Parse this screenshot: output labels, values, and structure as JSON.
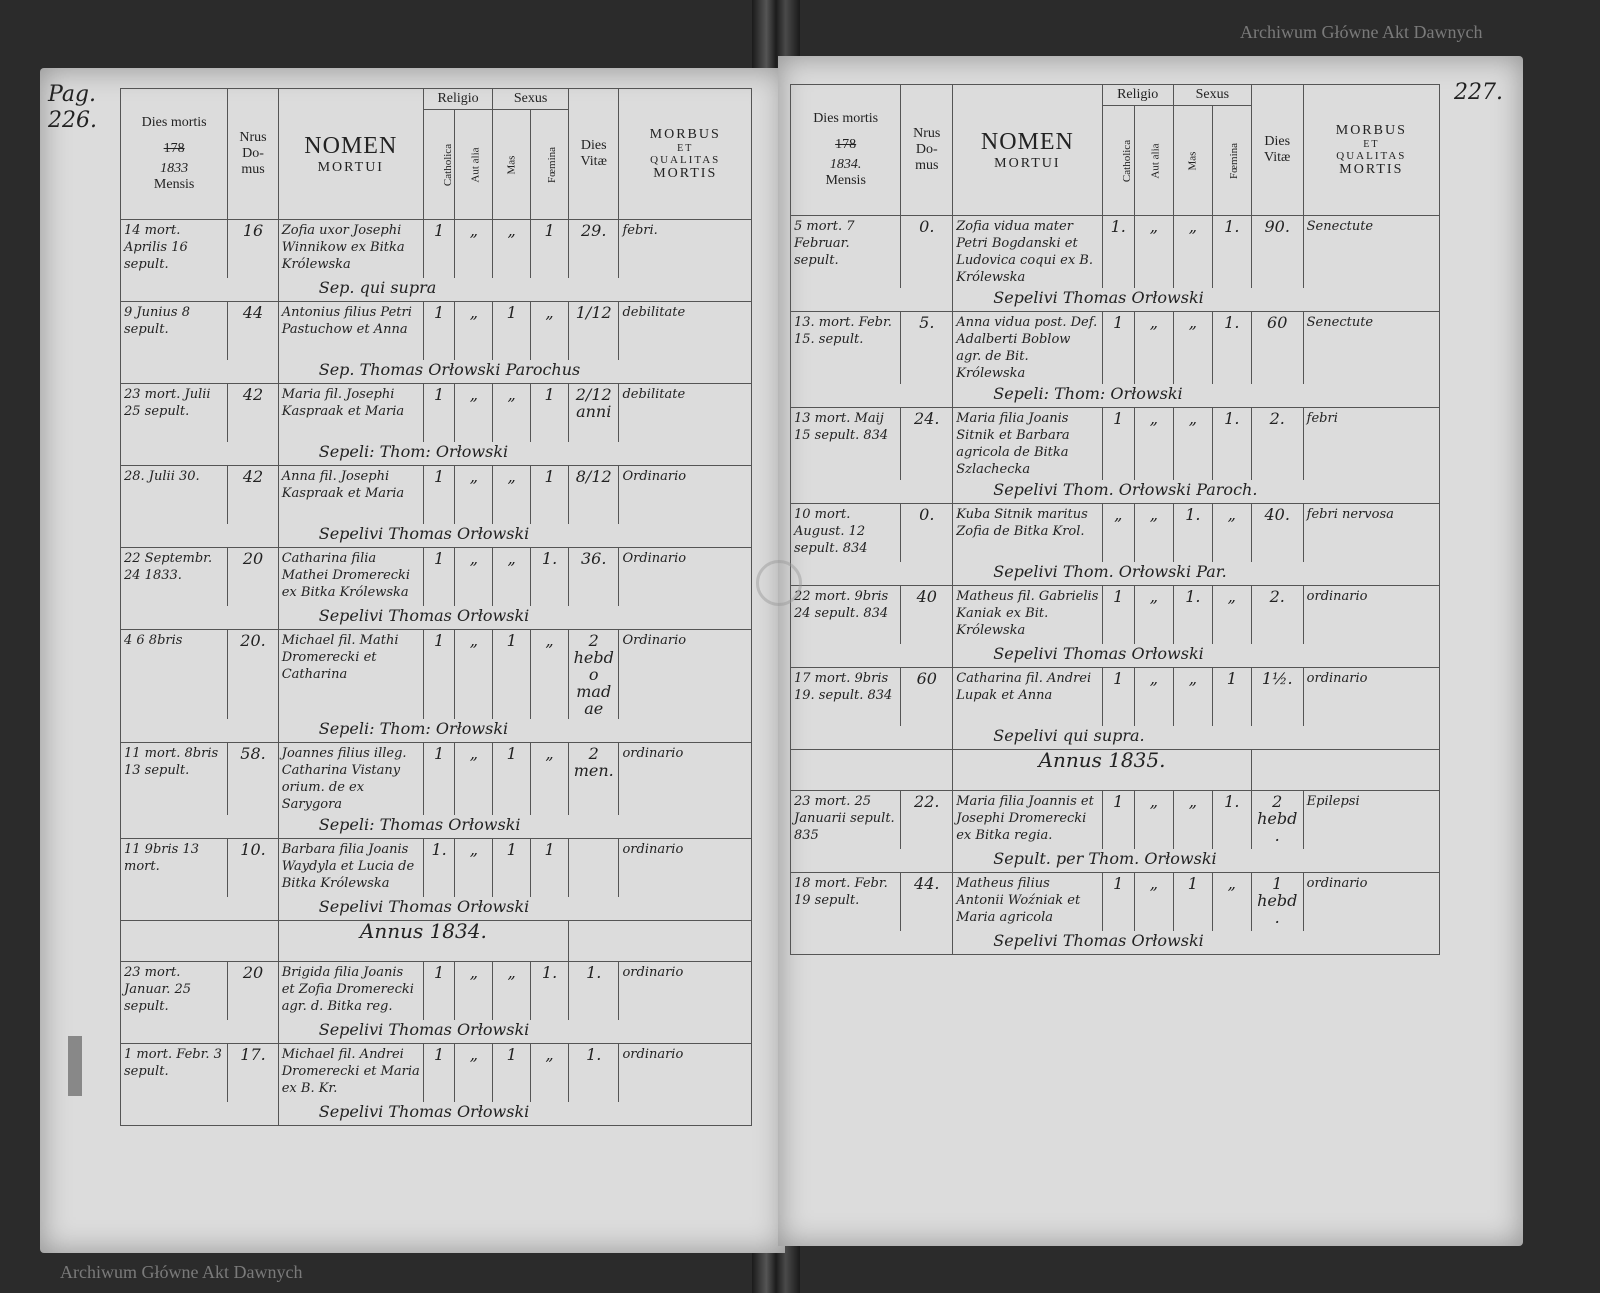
{
  "watermark": "Archiwum Główne Akt Dawnych",
  "stamp": "ARCHIWUM GŁÓWNE AKT DAWNYCH",
  "headers": {
    "dies_mortis": "Dies mortis",
    "year_prefix": "178",
    "mensis": "Mensis",
    "nrus": "Nrus",
    "domus": "Do- mus",
    "nomen": "NOMEN",
    "mortui": "MORTUI",
    "religio": "Religio",
    "sexus": "Sexus",
    "catholica": "Catholica",
    "aut_alia": "Aut alia",
    "mas": "Mas",
    "foemina": "Fœmina",
    "dies_vitae": "Dies Vitæ",
    "morbus": "MORBUS",
    "et": "ET",
    "qualitas": "QUALITAS",
    "mortis": "MORTIS"
  },
  "left": {
    "page_no": "Pag. 226.",
    "year": "1833",
    "rows": [
      {
        "date": "14 mort. Aprilis 16 sepult.",
        "nr": "16",
        "name": "Zofia uxor Josephi Winnikow ex Bitka Królewska",
        "cath": "1",
        "aut": "„",
        "mas": "„",
        "fem": "1",
        "vitae": "29.",
        "morbus": "febri.",
        "burial": "Sep. qui supra"
      },
      {
        "date": "9 Junius 8 sepult.",
        "nr": "44",
        "name": "Antonius filius Petri Pastuchow et Anna",
        "cath": "1",
        "aut": "„",
        "mas": "1",
        "fem": "„",
        "vitae": "1/12",
        "morbus": "debilitate",
        "burial": "Sep. Thomas Orłowski Parochus"
      },
      {
        "date": "23 mort. Julii 25 sepult.",
        "nr": "42",
        "name": "Maria fil. Josephi Kaspraak et Maria",
        "cath": "1",
        "aut": "„",
        "mas": "„",
        "fem": "1",
        "vitae": "2/12 anni",
        "morbus": "debilitate",
        "burial": "Sepeli: Thom: Orłowski"
      },
      {
        "date": "28. Julii 30.",
        "nr": "42",
        "name": "Anna fil. Josephi Kaspraak et Maria",
        "cath": "1",
        "aut": "„",
        "mas": "„",
        "fem": "1",
        "vitae": "8/12",
        "morbus": "Ordinario",
        "burial": "Sepelivi Thomas Orłowski"
      },
      {
        "date": "22 Septembr. 24 1833.",
        "nr": "20",
        "name": "Catharina filia Mathei Dromerecki ex Bitka Królewska",
        "cath": "1",
        "aut": "„",
        "mas": "„",
        "fem": "1.",
        "vitae": "36.",
        "morbus": "Ordinario",
        "burial": "Sepelivi Thomas Orłowski"
      },
      {
        "date": "4 6 8bris",
        "nr": "20.",
        "name": "Michael fil. Mathi Dromerecki et Catharina",
        "cath": "1",
        "aut": "„",
        "mas": "1",
        "fem": "„",
        "vitae": "2 hebdo madae",
        "morbus": "Ordinario",
        "burial": "Sepeli: Thom: Orłowski"
      },
      {
        "date": "11 mort. 8bris 13 sepult.",
        "nr": "58.",
        "name": "Joannes filius illeg. Catharina Vistany orium. de ex Sarygora",
        "cath": "1",
        "aut": "„",
        "mas": "1",
        "fem": "„",
        "vitae": "2 men.",
        "morbus": "ordinario",
        "burial": "Sepeli: Thomas Orłowski"
      },
      {
        "date": "11 9bris 13 mort.",
        "nr": "10.",
        "name": "Barbara filia Joanis Waydyla et Lucia de Bitka Królewska",
        "cath": "1.",
        "aut": "„",
        "mas": "1",
        "fem": "1",
        "vitae": "",
        "morbus": "ordinario",
        "burial": "Sepelivi Thomas Orłowski"
      },
      {
        "annus": "Annus 1834."
      },
      {
        "date": "23 mort. Januar. 25 sepult.",
        "nr": "20",
        "name": "Brigida filia Joanis et Zofia Dromerecki agr. d. Bitka reg.",
        "cath": "1",
        "aut": "„",
        "mas": "„",
        "fem": "1.",
        "vitae": "1.",
        "morbus": "ordinario",
        "burial": "Sepelivi Thomas Orłowski"
      },
      {
        "date": "1 mort. Febr. 3 sepult.",
        "nr": "17.",
        "name": "Michael fil. Andrei Dromerecki et Maria ex B. Kr.",
        "cath": "1",
        "aut": "„",
        "mas": "1",
        "fem": "„",
        "vitae": "1.",
        "morbus": "ordinario",
        "burial": "Sepelivi Thomas Orłowski"
      }
    ]
  },
  "right": {
    "page_no": "227.",
    "year": "1834.",
    "rows": [
      {
        "date": "5 mort. 7 Februar. sepult.",
        "nr": "0.",
        "name": "Zofia vidua mater Petri Bogdanski et Ludovica coqui ex B. Królewska",
        "cath": "1.",
        "aut": "„",
        "mas": "„",
        "fem": "1.",
        "vitae": "90.",
        "morbus": "Senectute",
        "burial": "Sepelivi Thomas Orłowski"
      },
      {
        "date": "13. mort. Febr. 15. sepult.",
        "nr": "5.",
        "name": "Anna vidua post. Def. Adalberti Boblow agr. de Bit. Królewska",
        "cath": "1",
        "aut": "„",
        "mas": "„",
        "fem": "1.",
        "vitae": "60",
        "morbus": "Senectute",
        "burial": "Sepeli: Thom: Orłowski"
      },
      {
        "date": "13 mort. Maij 15 sepult. 834",
        "nr": "24.",
        "name": "Maria filia Joanis Sitnik et Barbara agricola de Bitka Szlachecka",
        "cath": "1",
        "aut": "„",
        "mas": "„",
        "fem": "1.",
        "vitae": "2.",
        "morbus": "febri",
        "burial": "Sepelivi Thom. Orłowski Paroch."
      },
      {
        "date": "10 mort. August. 12 sepult. 834",
        "nr": "0.",
        "name": "Kuba Sitnik maritus Zofia de Bitka Krol.",
        "cath": "„",
        "aut": "„",
        "mas": "1.",
        "fem": "„",
        "vitae": "40.",
        "morbus": "febri nervosa",
        "burial": "Sepelivi Thom. Orłowski Par."
      },
      {
        "date": "22 mort. 9bris 24 sepult. 834",
        "nr": "40",
        "name": "Matheus fil. Gabrielis Kaniak ex Bit. Królewska",
        "cath": "1",
        "aut": "„",
        "mas": "1.",
        "fem": "„",
        "vitae": "2.",
        "morbus": "ordinario",
        "burial": "Sepelivi Thomas Orłowski"
      },
      {
        "date": "17 mort. 9bris 19. sepult. 834",
        "nr": "60",
        "name": "Catharina fil. Andrei Lupak et Anna",
        "cath": "1",
        "aut": "„",
        "mas": "„",
        "fem": "1",
        "vitae": "1½.",
        "morbus": "ordinario",
        "burial": "Sepelivi qui supra."
      },
      {
        "annus": "Annus 1835."
      },
      {
        "date": "23 mort. 25 Januarii sepult. 835",
        "nr": "22.",
        "name": "Maria filia Joannis et Josephi Dromerecki ex Bitka regia.",
        "cath": "1",
        "aut": "„",
        "mas": "„",
        "fem": "1.",
        "vitae": "2 hebd.",
        "morbus": "Epilepsi",
        "burial": "Sepult. per Thom. Orłowski"
      },
      {
        "date": "18 mort. Febr. 19 sepult.",
        "nr": "44.",
        "name": "Matheus filius Antonii Woźniak et Maria agricola",
        "cath": "1",
        "aut": "„",
        "mas": "1",
        "fem": "„",
        "vitae": "1 hebd.",
        "morbus": "ordinario",
        "burial": "Sepelivi Thomas Orłowski"
      }
    ]
  }
}
